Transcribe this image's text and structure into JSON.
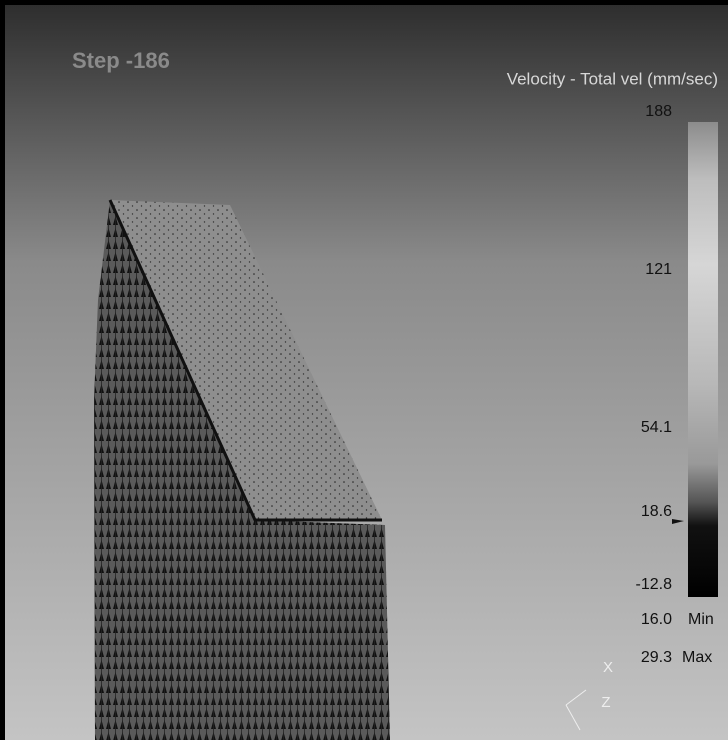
{
  "header": {
    "step": "Step -186"
  },
  "legend": {
    "title": "Velocity - Total vel (mm/sec)",
    "ticks": [
      "188",
      "121",
      "54.1",
      "18.6",
      "-12.8"
    ],
    "min": {
      "value": "16.0",
      "label": "Min"
    },
    "max": {
      "value": "29.3",
      "label": "Max"
    }
  },
  "axes": {
    "x": "X",
    "z": "Z"
  }
}
